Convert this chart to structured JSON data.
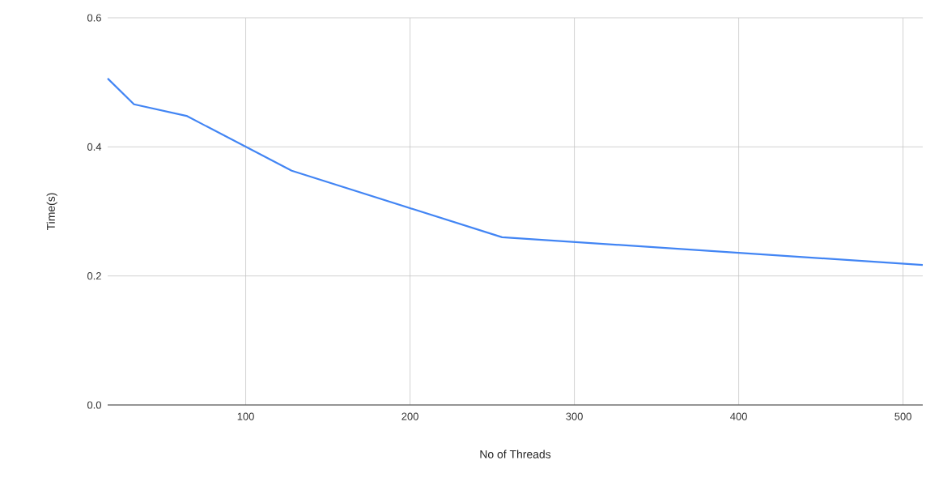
{
  "chart_data": {
    "type": "line",
    "xlabel": "No of Threads",
    "ylabel": "Time(s)",
    "x": [
      16,
      32,
      64,
      128,
      256,
      512
    ],
    "series": [
      {
        "color": "#4285f4",
        "values": [
          0.506,
          0.466,
          0.448,
          0.363,
          0.26,
          0.217
        ]
      }
    ],
    "xlim": [
      16,
      512
    ],
    "xticks": [
      100,
      200,
      300,
      400,
      500
    ],
    "ylim": [
      0,
      0.6
    ],
    "yticks": [
      {
        "value": 0,
        "label": "0.0"
      },
      0.2,
      0.4,
      0.6
    ],
    "grid": true
  }
}
